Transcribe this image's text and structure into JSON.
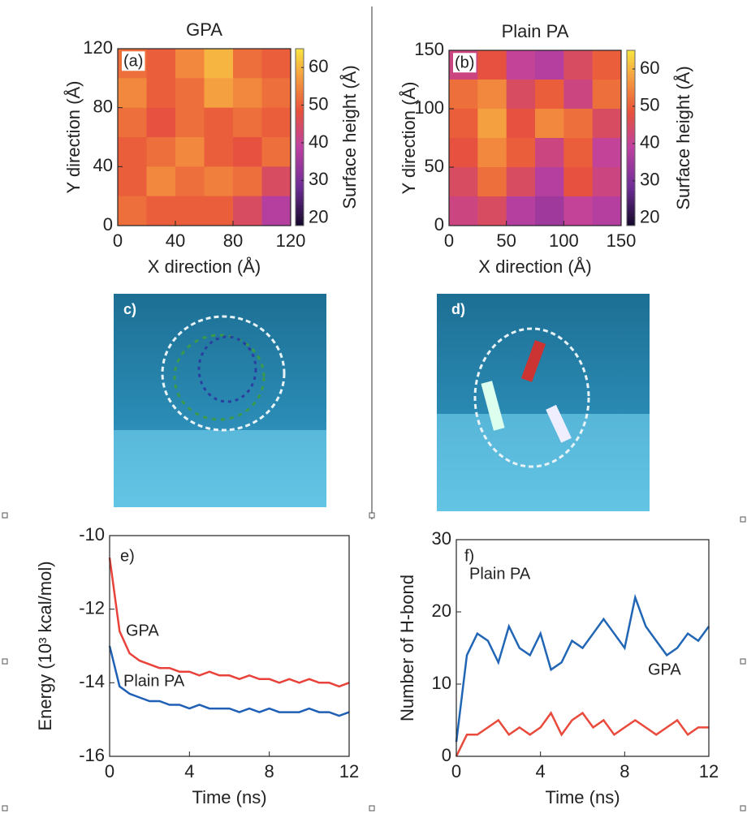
{
  "chart_data": [
    {
      "type": "heatmap",
      "title": "GPA",
      "label": "(a)",
      "xlabel": "X direction (Å)",
      "ylabel": "Y direction (Å)",
      "colorbar_label": "Surface height (Å)",
      "xlim": [
        0,
        120
      ],
      "xticks": [
        0,
        40,
        80,
        120
      ],
      "ylim": [
        0,
        120
      ],
      "yticks": [
        0,
        40,
        80,
        120
      ],
      "zlim": [
        18,
        65
      ],
      "zticks": [
        20,
        30,
        40,
        50,
        60
      ],
      "z": [
        [
          52,
          50,
          55,
          60,
          52,
          50
        ],
        [
          55,
          50,
          52,
          58,
          55,
          52
        ],
        [
          52,
          48,
          52,
          50,
          52,
          50
        ],
        [
          50,
          52,
          55,
          50,
          48,
          52
        ],
        [
          50,
          55,
          52,
          54,
          52,
          45
        ],
        [
          52,
          50,
          50,
          50,
          45,
          38
        ]
      ]
    },
    {
      "type": "heatmap",
      "title": "Plain PA",
      "label": "(b)",
      "xlabel": "X direction (Å)",
      "ylabel": "Y direction (Å)",
      "colorbar_label": "Surface height (Å)",
      "xlim": [
        0,
        150
      ],
      "xticks": [
        0,
        50,
        100,
        150
      ],
      "ylim": [
        0,
        150
      ],
      "yticks": [
        0,
        50,
        100,
        150
      ],
      "zlim": [
        18,
        65
      ],
      "zticks": [
        20,
        30,
        40,
        50,
        60
      ],
      "z": [
        [
          42,
          48,
          40,
          38,
          45,
          50
        ],
        [
          52,
          55,
          45,
          50,
          42,
          52
        ],
        [
          50,
          58,
          48,
          55,
          52,
          45
        ],
        [
          48,
          55,
          50,
          42,
          50,
          40
        ],
        [
          45,
          52,
          45,
          38,
          48,
          42
        ],
        [
          42,
          45,
          38,
          35,
          40,
          38
        ]
      ]
    },
    {
      "type": "line",
      "label": "e)",
      "xlabel": "Time (ns)",
      "ylabel": "Energy (10³ kcal/mol)",
      "xlim": [
        0,
        12
      ],
      "xticks": [
        0,
        4,
        8,
        12
      ],
      "ylim": [
        -16,
        -10
      ],
      "yticks": [
        -10,
        -12,
        -14,
        -16
      ],
      "x": [
        0,
        0.5,
        1,
        1.5,
        2,
        2.5,
        3,
        3.5,
        4,
        4.5,
        5,
        5.5,
        6,
        6.5,
        7,
        7.5,
        8,
        8.5,
        9,
        9.5,
        10,
        10.5,
        11,
        11.5,
        12
      ],
      "series": [
        {
          "name": "GPA",
          "color": "#e8423a",
          "values": [
            -10.6,
            -12.6,
            -13.2,
            -13.4,
            -13.5,
            -13.6,
            -13.6,
            -13.7,
            -13.7,
            -13.8,
            -13.7,
            -13.8,
            -13.8,
            -13.9,
            -13.8,
            -13.9,
            -13.9,
            -14.0,
            -13.9,
            -14.0,
            -13.9,
            -14.0,
            -14.0,
            -14.1,
            -14.0
          ]
        },
        {
          "name": "Plain PA",
          "color": "#1f5fb5",
          "values": [
            -13.0,
            -14.1,
            -14.3,
            -14.4,
            -14.5,
            -14.5,
            -14.6,
            -14.6,
            -14.7,
            -14.6,
            -14.7,
            -14.7,
            -14.7,
            -14.8,
            -14.7,
            -14.8,
            -14.7,
            -14.8,
            -14.8,
            -14.8,
            -14.7,
            -14.8,
            -14.8,
            -14.9,
            -14.8
          ]
        }
      ]
    },
    {
      "type": "line",
      "label": "f)",
      "xlabel": "Time (ns)",
      "ylabel": "Number of  H-bond",
      "xlim": [
        0,
        12
      ],
      "xticks": [
        0,
        4,
        8,
        12
      ],
      "ylim": [
        0,
        30
      ],
      "yticks": [
        0,
        10,
        20,
        30
      ],
      "x": [
        0,
        0.5,
        1,
        1.5,
        2,
        2.5,
        3,
        3.5,
        4,
        4.5,
        5,
        5.5,
        6,
        6.5,
        7,
        7.5,
        8,
        8.5,
        9,
        9.5,
        10,
        10.5,
        11,
        11.5,
        12
      ],
      "series": [
        {
          "name": "Plain PA",
          "color": "#2166b5",
          "values": [
            2,
            14,
            17,
            16,
            13,
            18,
            15,
            14,
            17,
            12,
            13,
            16,
            15,
            17,
            19,
            17,
            15,
            22,
            18,
            16,
            14,
            15,
            17,
            16,
            18
          ]
        },
        {
          "name": "GPA",
          "color": "#ea4a3c",
          "values": [
            0,
            3,
            3,
            4,
            5,
            3,
            4,
            3,
            4,
            6,
            3,
            5,
            6,
            4,
            5,
            3,
            4,
            5,
            4,
            3,
            4,
            5,
            3,
            4,
            4
          ]
        }
      ]
    }
  ],
  "images": [
    {
      "label": "c)"
    },
    {
      "label": "d)"
    }
  ]
}
